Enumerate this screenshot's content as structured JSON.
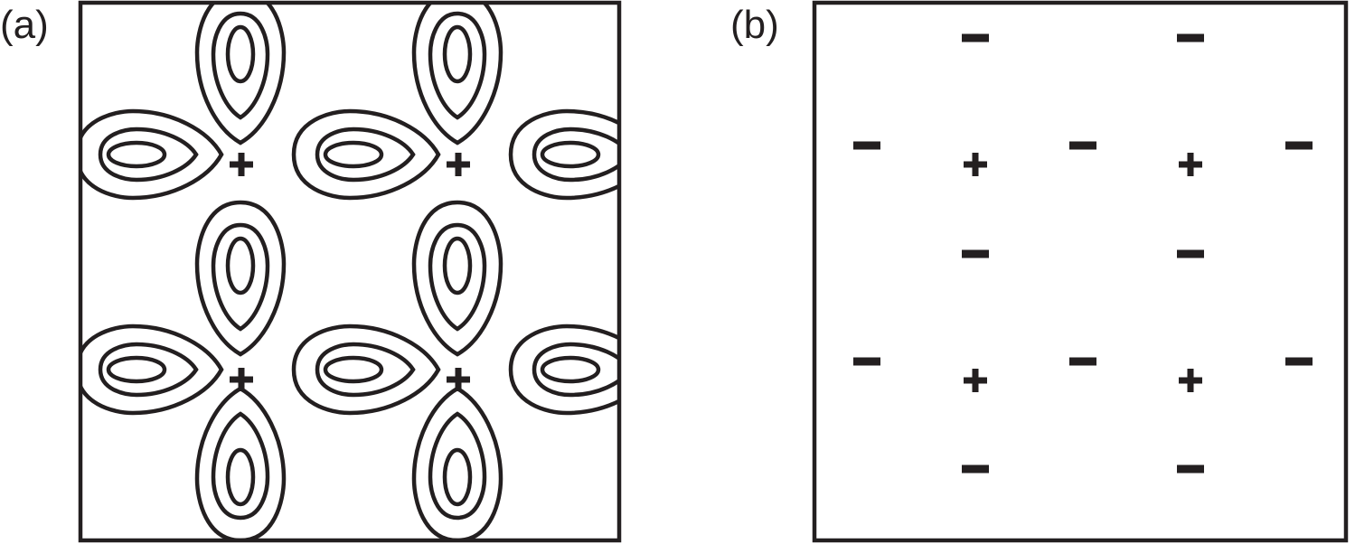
{
  "panel_a": {
    "label": "(a)",
    "plus_sign": "+",
    "center_labels": [
      "+",
      "+",
      "+",
      "+"
    ]
  },
  "panel_b": {
    "label": "(b)",
    "signs": [
      "−",
      "−",
      "−",
      "+",
      "−",
      "+",
      "−",
      "−",
      "−",
      "−",
      "+",
      "−",
      "+",
      "−",
      "−",
      "−"
    ],
    "sign_values": [
      -1,
      -1,
      -1,
      1,
      -1,
      1,
      -1,
      -1,
      -1,
      -1,
      1,
      -1,
      1,
      -1,
      -1,
      -1
    ]
  },
  "colors": {
    "stroke": "#231f20",
    "background": "#ffffff"
  }
}
